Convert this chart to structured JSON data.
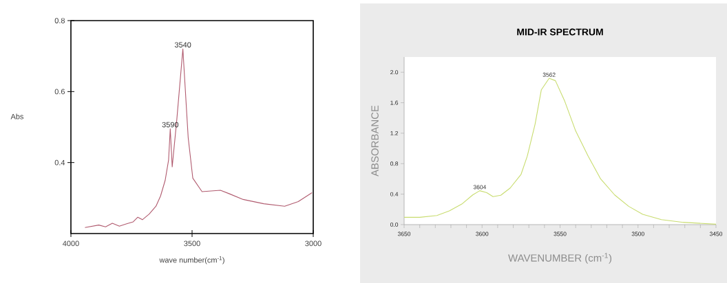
{
  "chart_data": [
    {
      "type": "line",
      "xlabel": "wave number(cm$^{-1}$)",
      "ylabel": "Abs",
      "color": "#b05a6e",
      "x": [
        3942,
        3885,
        3857,
        3829,
        3800,
        3772,
        3743,
        3724,
        3705,
        3677,
        3649,
        3630,
        3611,
        3597,
        3590,
        3582,
        3563,
        3538,
        3516,
        3497,
        3459,
        3383,
        3346,
        3289,
        3204,
        3118,
        3062,
        3005
      ],
      "values": [
        0.217,
        0.224,
        0.219,
        0.229,
        0.221,
        0.227,
        0.233,
        0.246,
        0.239,
        0.255,
        0.277,
        0.306,
        0.35,
        0.407,
        0.495,
        0.388,
        0.521,
        0.72,
        0.47,
        0.356,
        0.318,
        0.322,
        0.312,
        0.296,
        0.284,
        0.277,
        0.29,
        0.315
      ],
      "xlim": [
        4000,
        3000
      ],
      "ylim": [
        0.2,
        0.8
      ],
      "xticks": [
        4000,
        3500,
        3000
      ],
      "yticks": [
        0.4,
        0.6,
        0.8
      ],
      "annotations": [
        {
          "text": "3540",
          "x": 3538,
          "y": 0.72
        },
        {
          "text": "3590",
          "x": 3590,
          "y": 0.495
        }
      ]
    },
    {
      "type": "line",
      "title": "MID-IR SPECTRUM",
      "xlabel": "WAVENUMBER (cm$^{-1}$)",
      "ylabel": "ABSORBANCE",
      "color": "#c8dc6e",
      "x": [
        3650,
        3640,
        3629,
        3621,
        3613,
        3606,
        3601.5,
        3597,
        3593,
        3588,
        3582,
        3575,
        3571,
        3566,
        3562,
        3557,
        3553,
        3547,
        3540,
        3532,
        3524,
        3515,
        3506,
        3497,
        3485,
        3471,
        3450
      ],
      "values": [
        0.096,
        0.096,
        0.12,
        0.18,
        0.27,
        0.39,
        0.445,
        0.42,
        0.367,
        0.385,
        0.48,
        0.66,
        0.9,
        1.32,
        1.77,
        1.92,
        1.89,
        1.62,
        1.23,
        0.9,
        0.6,
        0.39,
        0.24,
        0.135,
        0.066,
        0.03,
        0.006
      ],
      "xlim": [
        3650,
        3450
      ],
      "ylim": [
        0,
        2.2
      ],
      "xticks": [
        3650,
        {
          "value": 3640,
          "label": null
        },
        {
          "value": 3630,
          "label": null
        },
        {
          "value": 3620,
          "label": null
        },
        {
          "value": 3610,
          "label": null
        },
        3600,
        {
          "value": 3590,
          "label": null
        },
        {
          "value": 3580,
          "label": null
        },
        {
          "value": 3570,
          "label": null
        },
        {
          "value": 3560,
          "label": null
        },
        3550,
        {
          "value": 3540,
          "label": null
        },
        {
          "value": 3530,
          "label": null
        },
        {
          "value": 3520,
          "label": null
        },
        {
          "value": 3510,
          "label": null
        },
        3500,
        {
          "value": 3490,
          "label": null
        },
        {
          "value": 3480,
          "label": null
        },
        {
          "value": 3470,
          "label": null
        },
        {
          "value": 3460,
          "label": null
        },
        3450
      ],
      "yticks": [
        {
          "value": 0,
          "label": "0.0"
        },
        0.4,
        0.8,
        1.2,
        1.6,
        {
          "value": 2,
          "label": "2.0"
        }
      ],
      "annotations": [
        {
          "text": "3562",
          "x": 3557,
          "y": 1.92
        },
        {
          "text": "3604",
          "x": 3601.5,
          "y": 0.445
        }
      ]
    }
  ]
}
